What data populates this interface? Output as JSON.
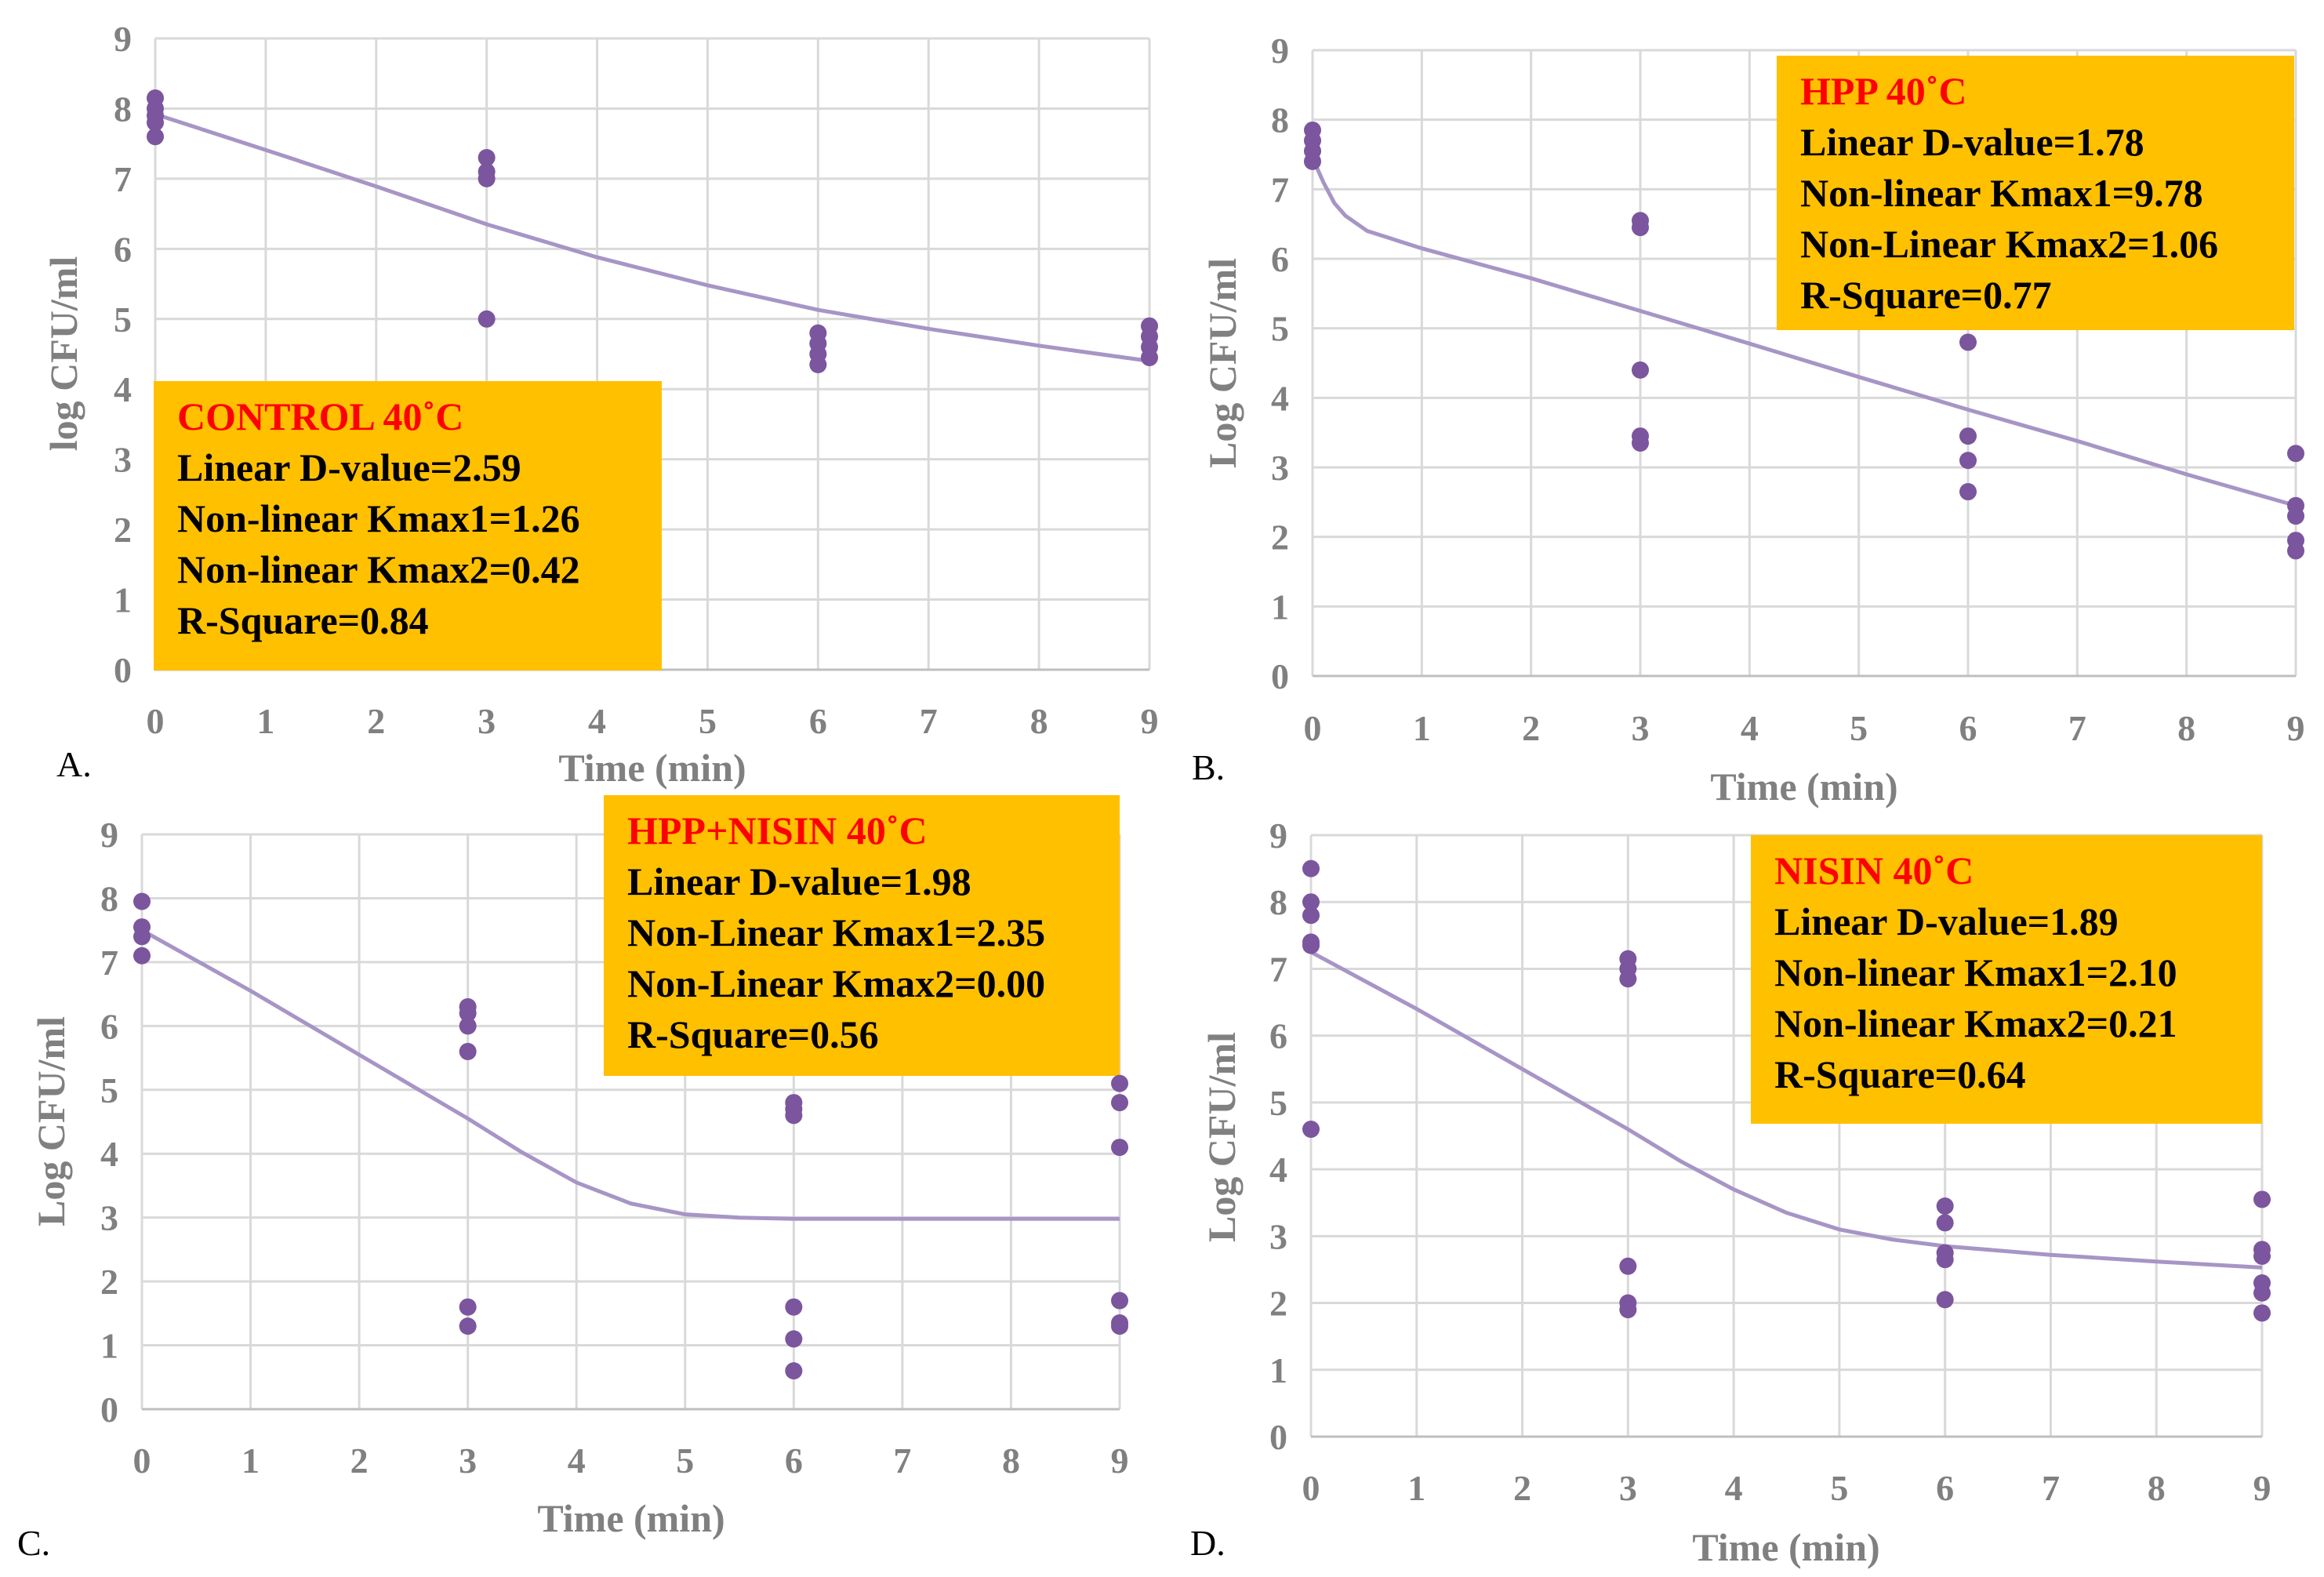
{
  "colors": {
    "point": "#7b559d",
    "fit": "#a795c6",
    "box_bg": "#ffc000",
    "box_title": "#ff0000",
    "grid": "#d9d9d9",
    "axis_text": "#808080"
  },
  "chart_data": [
    {
      "type": "scatter",
      "panel": "A.",
      "xlabel": "Time (min)",
      "ylabel": "log CFU/ml",
      "xlim": [
        0,
        9
      ],
      "ylim": [
        0,
        9
      ],
      "x_ticks": [
        "0",
        "1",
        "2",
        "3",
        "4",
        "5",
        "6",
        "7",
        "8",
        "9"
      ],
      "y_ticks": [
        "0",
        "1",
        "2",
        "3",
        "4",
        "5",
        "6",
        "7",
        "8",
        "9"
      ],
      "points": [
        [
          0,
          8.15
        ],
        [
          0,
          8.0
        ],
        [
          0,
          7.9
        ],
        [
          0,
          7.8
        ],
        [
          0,
          7.6
        ],
        [
          3,
          7.3
        ],
        [
          3,
          7.1
        ],
        [
          3,
          7.0
        ],
        [
          3,
          5.0
        ],
        [
          6,
          4.8
        ],
        [
          6,
          4.65
        ],
        [
          6,
          4.5
        ],
        [
          6,
          4.35
        ],
        [
          9,
          4.9
        ],
        [
          9,
          4.75
        ],
        [
          9,
          4.6
        ],
        [
          9,
          4.45
        ]
      ],
      "fit": [
        [
          0,
          7.92
        ],
        [
          1,
          7.41
        ],
        [
          2,
          6.89
        ],
        [
          3,
          6.35
        ],
        [
          4,
          5.88
        ],
        [
          5,
          5.48
        ],
        [
          6,
          5.13
        ],
        [
          7,
          4.86
        ],
        [
          8,
          4.62
        ],
        [
          9,
          4.4
        ]
      ],
      "legend_position": "bottom-left",
      "annotation": {
        "title": "CONTROL 40˚C",
        "lines": [
          "Linear D-value=2.59",
          "Non-linear Kmax1=1.26",
          "Non-linear Kmax2=0.42",
          "R-Square=0.84"
        ]
      }
    },
    {
      "type": "scatter",
      "panel": "B.",
      "xlabel": "Time (min)",
      "ylabel": "Log CFU/ml",
      "xlim": [
        0,
        9
      ],
      "ylim": [
        0,
        9
      ],
      "x_ticks": [
        "0",
        "1",
        "2",
        "3",
        "4",
        "5",
        "6",
        "7",
        "8",
        "9"
      ],
      "y_ticks": [
        "0",
        "1",
        "2",
        "3",
        "4",
        "5",
        "6",
        "7",
        "8",
        "9"
      ],
      "points": [
        [
          0,
          7.85
        ],
        [
          0,
          7.7
        ],
        [
          0,
          7.55
        ],
        [
          0,
          7.4
        ],
        [
          3,
          6.55
        ],
        [
          3,
          6.45
        ],
        [
          3,
          4.4
        ],
        [
          3,
          3.45
        ],
        [
          3,
          3.35
        ],
        [
          6,
          4.8
        ],
        [
          6,
          3.45
        ],
        [
          6,
          3.1
        ],
        [
          6,
          2.65
        ],
        [
          9,
          3.2
        ],
        [
          9,
          2.45
        ],
        [
          9,
          2.3
        ],
        [
          9,
          1.95
        ],
        [
          9,
          1.8
        ]
      ],
      "fit": [
        [
          0,
          7.45
        ],
        [
          0.1,
          7.1
        ],
        [
          0.2,
          6.8
        ],
        [
          0.3,
          6.62
        ],
        [
          0.5,
          6.4
        ],
        [
          1,
          6.15
        ],
        [
          2,
          5.72
        ],
        [
          3,
          5.25
        ],
        [
          4,
          4.78
        ],
        [
          5,
          4.3
        ],
        [
          6,
          3.83
        ],
        [
          7,
          3.38
        ],
        [
          8,
          2.9
        ],
        [
          9,
          2.45
        ]
      ],
      "legend_position": "top-right",
      "annotation": {
        "title": "HPP 40˚C",
        "lines": [
          "Linear D-value=1.78",
          "Non-linear Kmax1=9.78",
          "Non-Linear Kmax2=1.06",
          "R-Square=0.77"
        ]
      }
    },
    {
      "type": "scatter",
      "panel": "C.",
      "xlabel": "Time (min)",
      "ylabel": "Log CFU/ml",
      "xlim": [
        0,
        9
      ],
      "ylim": [
        0,
        9
      ],
      "x_ticks": [
        "0",
        "1",
        "2",
        "3",
        "4",
        "5",
        "6",
        "7",
        "8",
        "9"
      ],
      "y_ticks": [
        "0",
        "1",
        "2",
        "3",
        "4",
        "5",
        "6",
        "7",
        "8",
        "9"
      ],
      "points": [
        [
          0,
          7.95
        ],
        [
          0,
          7.55
        ],
        [
          0,
          7.4
        ],
        [
          0,
          7.1
        ],
        [
          3,
          6.3
        ],
        [
          3,
          6.2
        ],
        [
          3,
          6.0
        ],
        [
          3,
          5.6
        ],
        [
          3,
          1.6
        ],
        [
          3,
          1.3
        ],
        [
          6,
          4.8
        ],
        [
          6,
          4.7
        ],
        [
          6,
          4.6
        ],
        [
          6,
          1.6
        ],
        [
          6,
          1.1
        ],
        [
          6,
          0.6
        ],
        [
          9,
          5.1
        ],
        [
          9,
          4.8
        ],
        [
          9,
          4.1
        ],
        [
          9,
          1.7
        ],
        [
          9,
          1.35
        ],
        [
          9,
          1.3
        ]
      ],
      "fit": [
        [
          0,
          7.5
        ],
        [
          1,
          6.55
        ],
        [
          2,
          5.55
        ],
        [
          3,
          4.55
        ],
        [
          3.5,
          4.02
        ],
        [
          4,
          3.55
        ],
        [
          4.5,
          3.22
        ],
        [
          5,
          3.05
        ],
        [
          5.5,
          3.0
        ],
        [
          6,
          2.98
        ],
        [
          7,
          2.98
        ],
        [
          8,
          2.98
        ],
        [
          9,
          2.98
        ]
      ],
      "legend_position": "top-right",
      "annotation": {
        "title": "HPP+NISIN 40˚C",
        "lines": [
          "Linear D-value=1.98",
          "Non-Linear Kmax1=2.35",
          "Non-Linear Kmax2=0.00",
          "R-Square=0.56"
        ]
      }
    },
    {
      "type": "scatter",
      "panel": "D.",
      "xlabel": "Time (min)",
      "ylabel": "Log CFU/ml",
      "xlim": [
        0,
        9
      ],
      "ylim": [
        0,
        9
      ],
      "x_ticks": [
        "0",
        "1",
        "2",
        "3",
        "4",
        "5",
        "6",
        "7",
        "8",
        "9"
      ],
      "y_ticks": [
        "0",
        "1",
        "2",
        "3",
        "4",
        "5",
        "6",
        "7",
        "8",
        "9"
      ],
      "points": [
        [
          0,
          8.5
        ],
        [
          0,
          8.0
        ],
        [
          0,
          7.8
        ],
        [
          0,
          7.4
        ],
        [
          0,
          7.35
        ],
        [
          0,
          4.6
        ],
        [
          3,
          7.15
        ],
        [
          3,
          7.0
        ],
        [
          3,
          6.85
        ],
        [
          3,
          2.55
        ],
        [
          3,
          2.0
        ],
        [
          3,
          1.9
        ],
        [
          6,
          3.45
        ],
        [
          6,
          3.2
        ],
        [
          6,
          2.75
        ],
        [
          6,
          2.65
        ],
        [
          6,
          2.05
        ],
        [
          9,
          3.55
        ],
        [
          9,
          2.8
        ],
        [
          9,
          2.7
        ],
        [
          9,
          2.3
        ],
        [
          9,
          2.15
        ],
        [
          9,
          1.85
        ]
      ],
      "fit": [
        [
          0,
          7.25
        ],
        [
          1,
          6.4
        ],
        [
          2,
          5.5
        ],
        [
          3,
          4.6
        ],
        [
          3.5,
          4.12
        ],
        [
          4,
          3.7
        ],
        [
          4.5,
          3.35
        ],
        [
          5,
          3.1
        ],
        [
          5.5,
          2.95
        ],
        [
          6,
          2.85
        ],
        [
          7,
          2.72
        ],
        [
          8,
          2.62
        ],
        [
          9,
          2.53
        ]
      ],
      "legend_position": "top-right",
      "annotation": {
        "title": "NISIN 40˚C",
        "lines": [
          "Linear D-value=1.89",
          "Non-linear Kmax1=2.10",
          "Non-linear Kmax2=0.21",
          "R-Square=0.64"
        ]
      }
    }
  ]
}
